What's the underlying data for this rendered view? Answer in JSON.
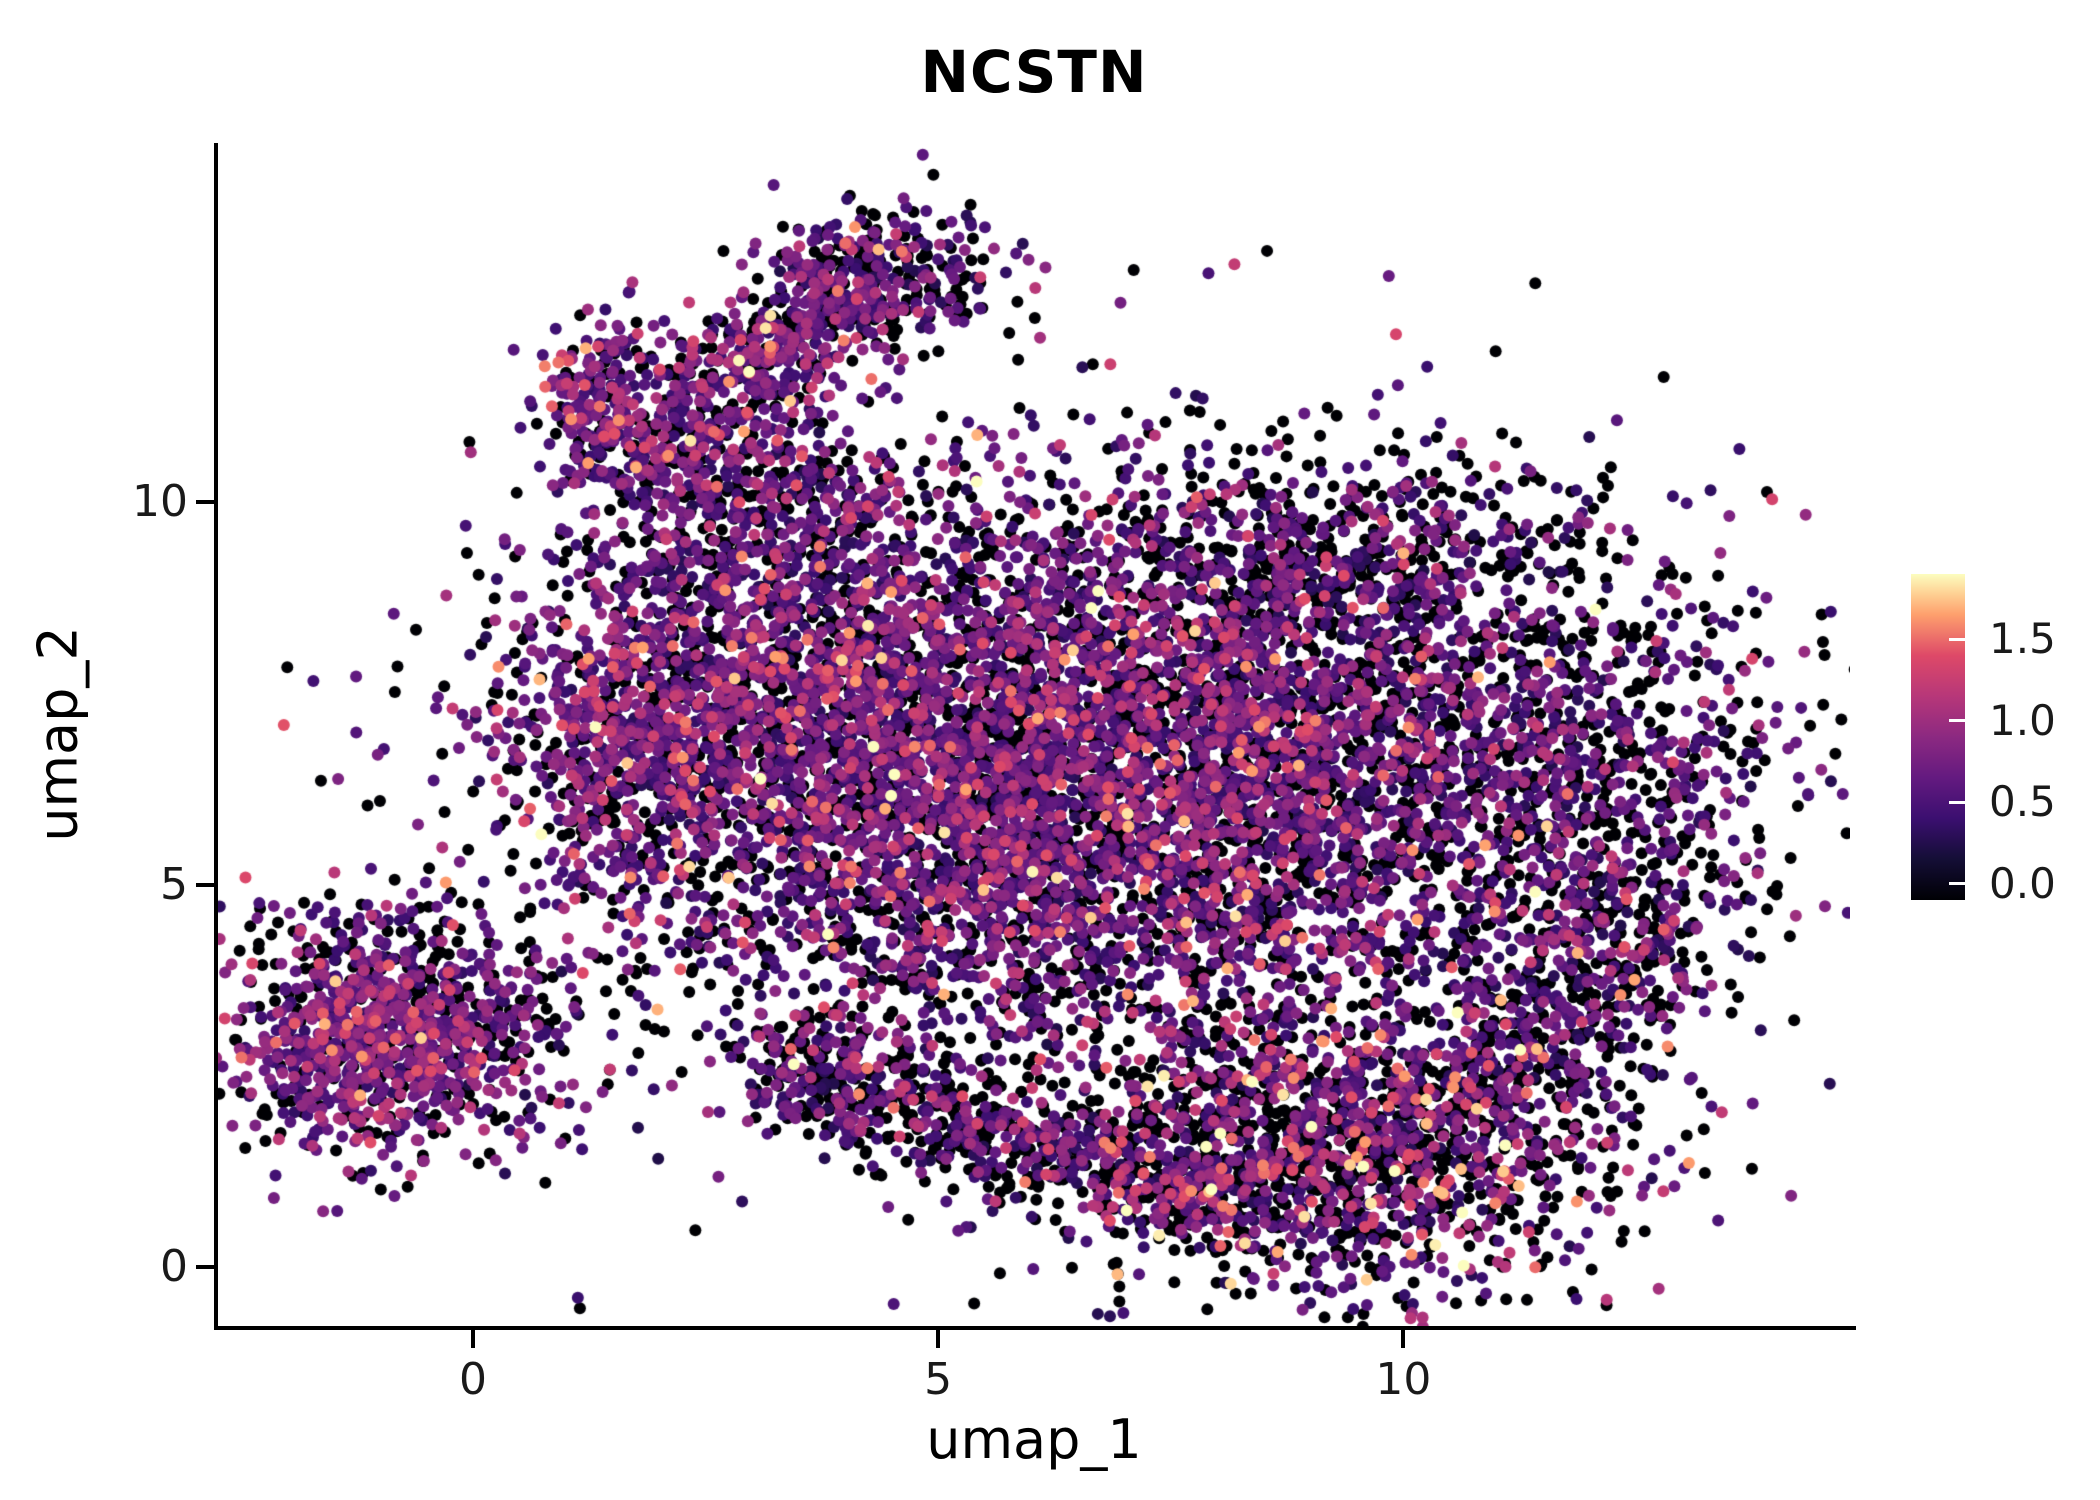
{
  "page": {
    "background": "#ffffff"
  },
  "chart_data": {
    "type": "scatter",
    "title": "NCSTN",
    "xlabel": "umap_1",
    "ylabel": "umap_2",
    "xlim": [
      -2.74,
      14.8
    ],
    "ylim": [
      -0.77,
      14.7
    ],
    "grid": false,
    "legend_position": "right",
    "x_ticks": [
      {
        "value": 0,
        "label": "0"
      },
      {
        "value": 5,
        "label": "5"
      },
      {
        "value": 10,
        "label": "10"
      }
    ],
    "y_ticks": [
      {
        "value": 0,
        "label": "0"
      },
      {
        "value": 5,
        "label": "5"
      },
      {
        "value": 10,
        "label": "10"
      }
    ],
    "colormap": "magma",
    "color_range": [
      0,
      1.9
    ],
    "colorbar_value_range": [
      -0.1,
      1.9
    ],
    "legend_ticks": [
      {
        "value": 0.0,
        "label": "0.0"
      },
      {
        "value": 0.5,
        "label": "0.5"
      },
      {
        "value": 1.0,
        "label": "1.0"
      },
      {
        "value": 1.5,
        "label": "1.5"
      }
    ],
    "colormap_stops": [
      [
        0.0,
        "#000004"
      ],
      [
        0.125,
        "#140e36"
      ],
      [
        0.25,
        "#3b0f70"
      ],
      [
        0.375,
        "#641a80"
      ],
      [
        0.5,
        "#8c2981"
      ],
      [
        0.625,
        "#b73779"
      ],
      [
        0.75,
        "#de4968"
      ],
      [
        0.875,
        "#fe9f6d"
      ],
      [
        0.9375,
        "#fecf92"
      ],
      [
        1.0,
        "#fcfdbf"
      ]
    ],
    "point_radius": 6,
    "seed": 42,
    "n_points_total": 14870,
    "clusters": [
      {
        "name": "bottom-left-cluster",
        "type": "gaussian",
        "cx": -1.05,
        "cy": 3.05,
        "sx": 0.8,
        "sy": 0.78,
        "count": 1050,
        "p0": 0.27,
        "base": 0.4,
        "spread": 0.5
      },
      {
        "name": "left-bridge",
        "type": "gaussian",
        "cx": 0.6,
        "cy": 3.0,
        "sx": 0.8,
        "sy": 0.7,
        "count": 130,
        "p0": 0.45,
        "base": 0.3,
        "spread": 0.45
      },
      {
        "name": "left-arm",
        "type": "gaussian",
        "cx": 1.6,
        "cy": 6.9,
        "sx": 0.65,
        "sy": 1.1,
        "count": 420,
        "p0": 0.3,
        "base": 0.42,
        "spread": 0.5
      },
      {
        "name": "main-left",
        "type": "gaussian",
        "cx": 3.5,
        "cy": 7.5,
        "sx": 1.5,
        "sy": 1.35,
        "count": 1900,
        "p0": 0.33,
        "base": 0.36,
        "spread": 0.52
      },
      {
        "name": "main-center",
        "type": "gaussian",
        "cx": 6.9,
        "cy": 7.3,
        "sx": 2.0,
        "sy": 1.5,
        "count": 2500,
        "p0": 0.33,
        "base": 0.36,
        "spread": 0.52
      },
      {
        "name": "main-lower",
        "type": "gaussian",
        "cx": 5.7,
        "cy": 5.1,
        "sx": 1.9,
        "sy": 1.25,
        "count": 1600,
        "p0": 0.36,
        "base": 0.35,
        "spread": 0.5
      },
      {
        "name": "main-right",
        "type": "gaussian",
        "cx": 9.8,
        "cy": 6.1,
        "sx": 1.6,
        "sy": 1.7,
        "count": 1400,
        "p0": 0.37,
        "base": 0.35,
        "spread": 0.5
      },
      {
        "name": "top-right-dark",
        "type": "gaussian",
        "cx": 9.4,
        "cy": 9.3,
        "sx": 1.4,
        "sy": 0.65,
        "count": 450,
        "p0": 0.55,
        "base": 0.3,
        "spread": 0.42
      },
      {
        "name": "right-edge-ring",
        "type": "gaussian",
        "cx": 12.3,
        "cy": 6.2,
        "sx": 0.95,
        "sy": 1.7,
        "count": 600,
        "p0": 0.47,
        "base": 0.32,
        "spread": 0.45
      },
      {
        "name": "neck",
        "type": "gaussian",
        "cx": 3.2,
        "cy": 9.9,
        "sx": 0.95,
        "sy": 0.6,
        "count": 330,
        "p0": 0.42,
        "base": 0.32,
        "spread": 0.45
      },
      {
        "name": "top-arm",
        "type": "path",
        "points": [
          [
            1.95,
            10.4
          ],
          [
            3.0,
            11.7
          ],
          [
            4.25,
            13.2
          ]
        ],
        "width": 0.42,
        "count": 620,
        "p0": 0.3,
        "base": 0.4,
        "spread": 0.5
      },
      {
        "name": "top-arm-tip",
        "type": "gaussian",
        "cx": 4.5,
        "cy": 12.9,
        "sx": 0.6,
        "sy": 0.45,
        "count": 260,
        "p0": 0.5,
        "base": 0.3,
        "spread": 0.45
      },
      {
        "name": "top-left-blob",
        "type": "gaussian",
        "cx": 1.35,
        "cy": 11.25,
        "sx": 0.33,
        "sy": 0.6,
        "count": 230,
        "p0": 0.28,
        "base": 0.42,
        "spread": 0.5
      },
      {
        "name": "bottom-band",
        "type": "path",
        "points": [
          [
            3.1,
            2.75
          ],
          [
            4.7,
            2.05
          ],
          [
            6.4,
            1.45
          ],
          [
            8.3,
            0.75
          ]
        ],
        "width": 0.4,
        "count": 850,
        "p0": 0.47,
        "base": 0.32,
        "spread": 0.55
      },
      {
        "name": "bottom-right-cluster",
        "type": "gaussian",
        "cx": 9.4,
        "cy": 1.6,
        "sx": 1.45,
        "sy": 0.95,
        "count": 1500,
        "p0": 0.5,
        "base": 0.32,
        "spread": 0.68
      },
      {
        "name": "bottom-right-edge",
        "type": "path",
        "points": [
          [
            10.6,
            2.3
          ],
          [
            11.7,
            3.3
          ],
          [
            12.5,
            4.5
          ]
        ],
        "width": 0.45,
        "count": 330,
        "p0": 0.45,
        "base": 0.32,
        "spread": 0.5
      },
      {
        "name": "sparse-fill",
        "type": "gaussian",
        "cx": 7.0,
        "cy": 6.2,
        "sx": 3.4,
        "sy": 2.6,
        "count": 700,
        "p0": 0.5,
        "base": 0.3,
        "spread": 0.45
      }
    ]
  }
}
